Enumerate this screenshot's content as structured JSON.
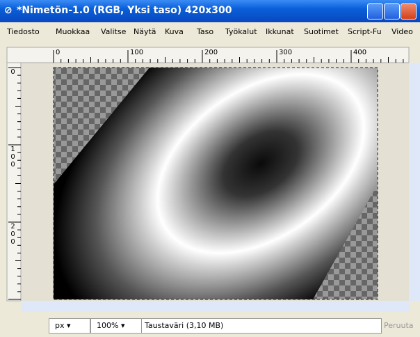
{
  "window": {
    "title": "*Nimetön-1.0 (RGB, Yksi taso) 420x300"
  },
  "menu": [
    "Tiedosto",
    "Muokkaa",
    "Valitse",
    "Näytä",
    "Kuva",
    "Taso",
    "Työkalut",
    "Ikkunat",
    "Suotimet",
    "Script-Fu",
    "Video"
  ],
  "ruler": {
    "top": [
      "0",
      "100",
      "200",
      "300",
      "400"
    ],
    "left": [
      "0",
      "100",
      "200"
    ]
  },
  "status": {
    "unit": "px",
    "zoom": "100%",
    "message": "Taustaväri (3,10 MB)",
    "cancel": "Peruuta"
  }
}
